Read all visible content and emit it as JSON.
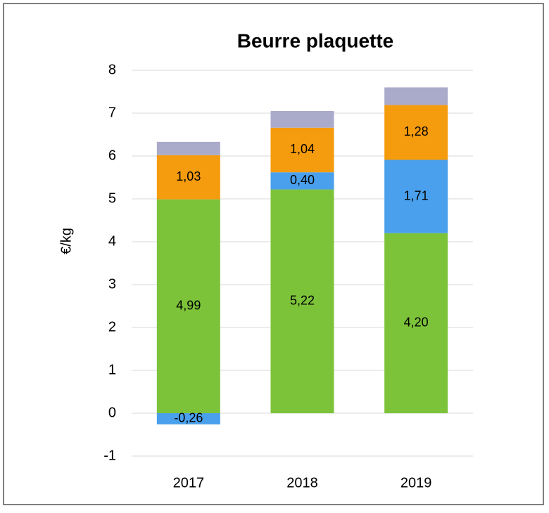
{
  "chart_data": {
    "type": "bar",
    "stacked": true,
    "title": "Beurre plaquette",
    "ylabel": "€/kg",
    "categories": [
      "2017",
      "2018",
      "2019"
    ],
    "series": [
      {
        "color": "#7dc33a",
        "values": [
          4.99,
          5.22,
          4.2
        ],
        "value_labels": [
          "4,99",
          "5,22",
          "4,20"
        ]
      },
      {
        "color": "#4aa0ec",
        "values": [
          -0.26,
          0.4,
          1.71
        ],
        "value_labels": [
          "-0,26",
          "0,40",
          "1,71"
        ]
      },
      {
        "color": "#f59b0e",
        "values": [
          1.03,
          1.04,
          1.28
        ],
        "value_labels": [
          "1,03",
          "1,04",
          "1,28"
        ]
      },
      {
        "color": "#aaaacb",
        "values": [
          0.31,
          0.39,
          0.41
        ]
      }
    ],
    "ylim": [
      -1,
      8
    ],
    "yticks": [
      -1,
      0,
      1,
      2,
      3,
      4,
      5,
      6,
      7,
      8
    ],
    "grid": true
  }
}
